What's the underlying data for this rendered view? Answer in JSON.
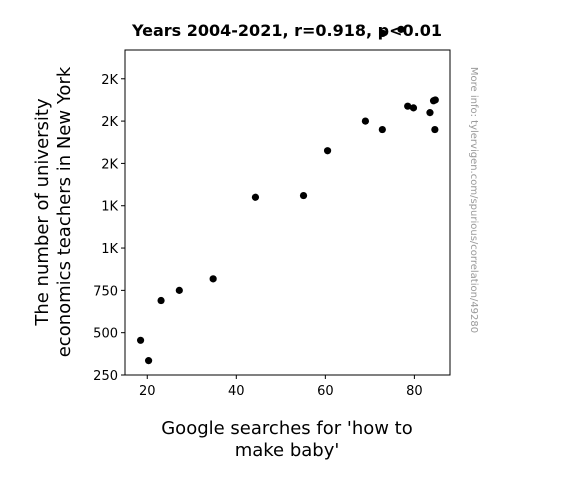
{
  "chart_data": {
    "type": "scatter",
    "title": "Years 2004-2021, r=0.918, p<0.01",
    "xlabel_lines": [
      "Google searches for 'how to",
      "make baby'"
    ],
    "ylabel_lines": [
      "The number of university",
      "economics teachers in New York"
    ],
    "xlim": [
      15,
      88
    ],
    "ylim": [
      250,
      2170
    ],
    "xticks": [
      {
        "value": 20,
        "label": "20"
      },
      {
        "value": 40,
        "label": "40"
      },
      {
        "value": 60,
        "label": "60"
      },
      {
        "value": 80,
        "label": "80"
      }
    ],
    "yticks": [
      {
        "value": 250,
        "label": "250"
      },
      {
        "value": 500,
        "label": "500"
      },
      {
        "value": 750,
        "label": "750"
      },
      {
        "value": 1000,
        "label": "1K"
      },
      {
        "value": 1250,
        "label": "1K"
      },
      {
        "value": 1500,
        "label": "2K"
      },
      {
        "value": 1750,
        "label": "2K"
      },
      {
        "value": 2000,
        "label": "2K"
      }
    ],
    "points": [
      {
        "x": 18.5,
        "y": 455
      },
      {
        "x": 20.3,
        "y": 335
      },
      {
        "x": 23.1,
        "y": 690
      },
      {
        "x": 27.2,
        "y": 750
      },
      {
        "x": 34.8,
        "y": 818
      },
      {
        "x": 44.3,
        "y": 1300
      },
      {
        "x": 55.1,
        "y": 1310
      },
      {
        "x": 60.5,
        "y": 1575
      },
      {
        "x": 69.0,
        "y": 1750
      },
      {
        "x": 72.8,
        "y": 1700
      },
      {
        "x": 72.9,
        "y": 2268
      },
      {
        "x": 77.0,
        "y": 2292
      },
      {
        "x": 78.5,
        "y": 1838
      },
      {
        "x": 79.8,
        "y": 1828
      },
      {
        "x": 83.5,
        "y": 1800
      },
      {
        "x": 84.3,
        "y": 1870
      },
      {
        "x": 84.7,
        "y": 1875
      },
      {
        "x": 84.6,
        "y": 1700
      }
    ]
  },
  "side_note": "More info: tylervigen.com/spurious/correlation/49280"
}
